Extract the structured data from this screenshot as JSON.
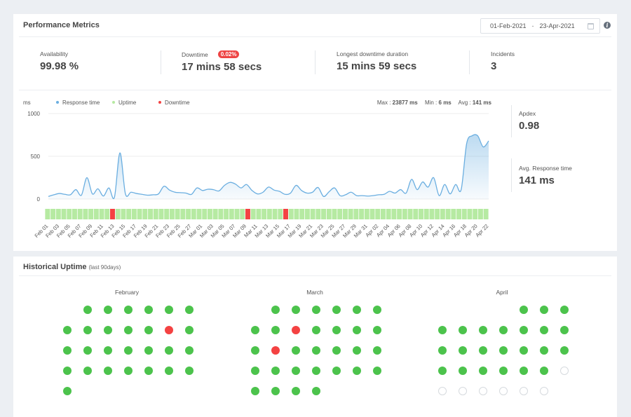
{
  "performance": {
    "title": "Performance Metrics",
    "date_from": "01-Feb-2021",
    "date_separator": "-",
    "date_to": "23-Apr-2021",
    "metrics": [
      {
        "label": "Availability",
        "value": "99.98 %"
      },
      {
        "label": "Downtime",
        "value": "17 mins 58 secs",
        "badge": "0.02%"
      },
      {
        "label": "Longest downtime duration",
        "value": "15 mins 59 secs"
      },
      {
        "label": "Incidents",
        "value": "3"
      }
    ],
    "apdex": {
      "label": "Apdex",
      "value": "0.98"
    },
    "avg_response": {
      "label": "Avg. Response time",
      "value": "141 ms"
    },
    "colors": {
      "response": "#6aaee0",
      "uptime": "#b6eaa2",
      "downtime": "#f44242",
      "accent_badge": "#ee4444"
    }
  },
  "chart_data": {
    "type": "area",
    "y_unit_label": "ms",
    "ylim": [
      0,
      1000
    ],
    "y_ticks": [
      "1000",
      "500",
      "0"
    ],
    "legend": [
      "Response time",
      "Uptime",
      "Downtime"
    ],
    "legend_placement": "top-left",
    "stats": {
      "max_label": "Max :",
      "max": "23877 ms",
      "min_label": "Min :",
      "min": "6 ms",
      "avg_label": "Avg :",
      "avg": "141 ms"
    },
    "x_labels": [
      "Feb 01",
      "Feb 03",
      "Feb 05",
      "Feb 07",
      "Feb 09",
      "Feb 11",
      "Feb 13",
      "Feb 15",
      "Feb 17",
      "Feb 19",
      "Feb 21",
      "Feb 23",
      "Feb 25",
      "Feb 27",
      "Mar 01",
      "Mar 03",
      "Mar 05",
      "Mar 07",
      "Mar 09",
      "Mar 11",
      "Mar 13",
      "Mar 15",
      "Mar 17",
      "Mar 19",
      "Mar 21",
      "Mar 23",
      "Mar 25",
      "Mar 27",
      "Mar 29",
      "Mar 31",
      "Apr 02",
      "Apr 04",
      "Apr 06",
      "Apr 08",
      "Apr 10",
      "Apr 12",
      "Apr 14",
      "Apr 16",
      "Apr 18",
      "Apr 20",
      "Apr 22"
    ],
    "series": [
      {
        "name": "Response time",
        "values": [
          30,
          50,
          65,
          55,
          50,
          110,
          45,
          250,
          60,
          120,
          35,
          130,
          20,
          540,
          60,
          80,
          65,
          55,
          45,
          50,
          60,
          150,
          105,
          80,
          75,
          70,
          55,
          130,
          100,
          115,
          110,
          95,
          160,
          195,
          175,
          130,
          170,
          100,
          60,
          80,
          140,
          105,
          90,
          55,
          70,
          160,
          100,
          70,
          80,
          135,
          30,
          85,
          130,
          40,
          50,
          80,
          40,
          40,
          35,
          40,
          50,
          55,
          90,
          70,
          110,
          70,
          230,
          110,
          200,
          140,
          250,
          40,
          170,
          60,
          170,
          110,
          650,
          740,
          740,
          610,
          680
        ]
      }
    ],
    "day_status": [
      "up",
      "up",
      "up",
      "up",
      "up",
      "up",
      "up",
      "up",
      "up",
      "up",
      "up",
      "up",
      "down",
      "up",
      "up",
      "up",
      "up",
      "up",
      "up",
      "up",
      "up",
      "up",
      "up",
      "up",
      "up",
      "up",
      "up",
      "up",
      "up",
      "up",
      "up",
      "up",
      "up",
      "up",
      "up",
      "up",
      "up",
      "down",
      "up",
      "up",
      "up",
      "up",
      "up",
      "up",
      "down",
      "up",
      "up",
      "up",
      "up",
      "up",
      "up",
      "up",
      "up",
      "up",
      "up",
      "up",
      "up",
      "up",
      "up",
      "up",
      "up",
      "up",
      "up",
      "up",
      "up",
      "up",
      "up",
      "up",
      "up",
      "up",
      "up",
      "up",
      "up",
      "up",
      "up",
      "up",
      "up",
      "up",
      "up",
      "up",
      "up",
      "up"
    ]
  },
  "historical": {
    "title": "Historical Uptime",
    "subtitle": "(last 90days)",
    "months": [
      {
        "name": "February",
        "start_col": 1,
        "days": [
          "up",
          "up",
          "up",
          "up",
          "up",
          "up",
          "up",
          "up",
          "up",
          "up",
          "up",
          "down",
          "up",
          "up",
          "up",
          "up",
          "up",
          "up",
          "up",
          "up",
          "up",
          "up",
          "up",
          "up",
          "up",
          "up",
          "up",
          "up"
        ]
      },
      {
        "name": "March",
        "start_col": 1,
        "days": [
          "up",
          "up",
          "up",
          "up",
          "up",
          "up",
          "up",
          "up",
          "down",
          "up",
          "up",
          "up",
          "up",
          "up",
          "down",
          "up",
          "up",
          "up",
          "up",
          "up",
          "up",
          "up",
          "up",
          "up",
          "up",
          "up",
          "up",
          "up",
          "up",
          "up",
          "up"
        ]
      },
      {
        "name": "April",
        "start_col": 4,
        "days": [
          "up",
          "up",
          "up",
          "up",
          "up",
          "up",
          "up",
          "up",
          "up",
          "up",
          "up",
          "up",
          "up",
          "up",
          "up",
          "up",
          "up",
          "up",
          "up",
          "up",
          "up",
          "up",
          "up",
          "none",
          "none",
          "none",
          "none",
          "none",
          "none",
          "none"
        ]
      }
    ]
  }
}
